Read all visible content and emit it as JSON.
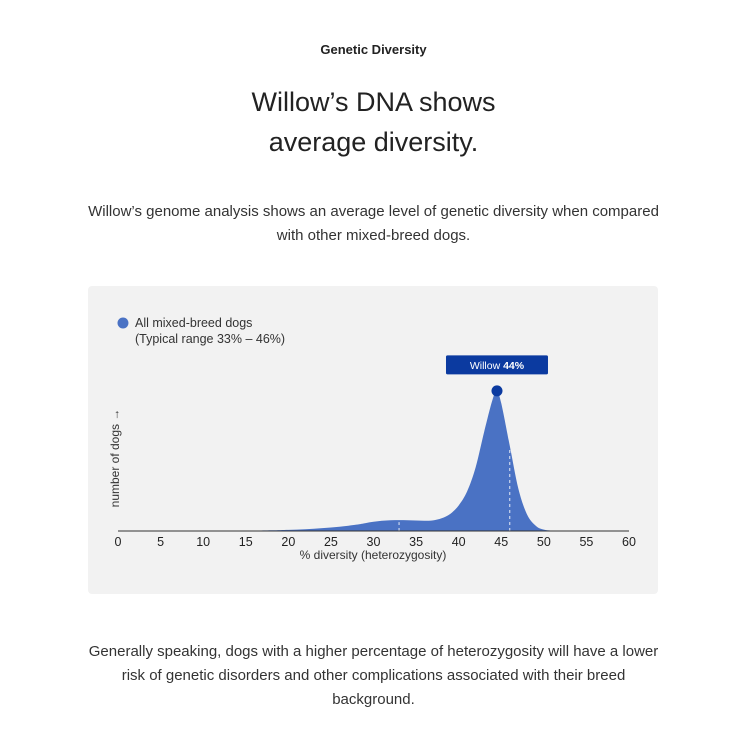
{
  "section_label": "Genetic Diversity",
  "headline": {
    "line1": "Willow’s DNA shows",
    "line2": "average diversity."
  },
  "intro_text": "Willow’s genome analysis shows an average level of genetic diversity when compared with other mixed-breed dogs.",
  "outro_text": "Generally speaking, dogs with a higher percentage of heterozygosity will have a lower risk of genetic disorders and other complications associated with their breed background.",
  "chart_data": {
    "type": "area",
    "title": "",
    "xlabel": "% diversity (heterozygosity)",
    "ylabel": "number of dogs →",
    "xlim": [
      0,
      60
    ],
    "x_ticks": [
      0,
      5,
      10,
      15,
      20,
      25,
      30,
      35,
      40,
      45,
      50,
      55,
      60
    ],
    "grid": false,
    "legend": {
      "position": "top-left",
      "label": "All mixed-breed dogs",
      "sublabel": "(Typical range 33% – 46%)"
    },
    "series": [
      {
        "name": "All mixed-breed dogs",
        "color": "#4a72c4",
        "x": [
          0,
          10,
          15,
          18,
          20,
          22,
          24,
          26,
          28,
          29,
          30,
          31,
          32,
          33,
          34,
          35,
          36,
          37,
          38,
          39,
          40,
          41,
          42,
          43,
          44,
          44.5,
          45,
          46,
          47,
          48,
          49,
          50,
          52,
          55,
          60
        ],
        "y": [
          0,
          0,
          0.002,
          0.005,
          0.008,
          0.012,
          0.02,
          0.03,
          0.045,
          0.055,
          0.065,
          0.072,
          0.076,
          0.077,
          0.076,
          0.074,
          0.072,
          0.075,
          0.09,
          0.12,
          0.18,
          0.28,
          0.45,
          0.7,
          0.93,
          0.98,
          0.9,
          0.6,
          0.3,
          0.12,
          0.04,
          0.01,
          0,
          0,
          0
        ]
      }
    ],
    "typical_range": [
      33,
      46
    ],
    "marker": {
      "label": "Willow",
      "value_label": "44%",
      "x": 44.5
    },
    "colors": {
      "area": "#4a72c4",
      "marker": "#0b3aa0",
      "tag_bg": "#0b3aa0",
      "tag_text": "#ffffff",
      "axis": "#333333",
      "card_bg": "#f2f2f2"
    }
  }
}
